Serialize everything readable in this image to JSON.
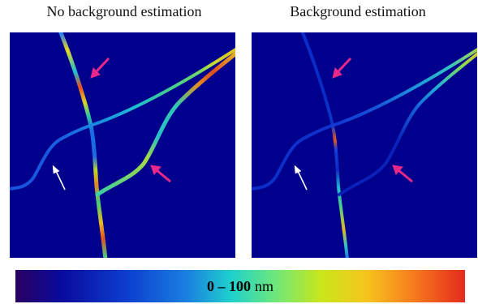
{
  "titles": {
    "left": "No background estimation",
    "right": "Background estimation"
  },
  "colorbar": {
    "range_label": "0 – 100",
    "unit": "nm"
  },
  "colors": {
    "background": "#00008c",
    "arrow_magenta": "#e8288a",
    "arrow_white": "#ffffff"
  }
}
